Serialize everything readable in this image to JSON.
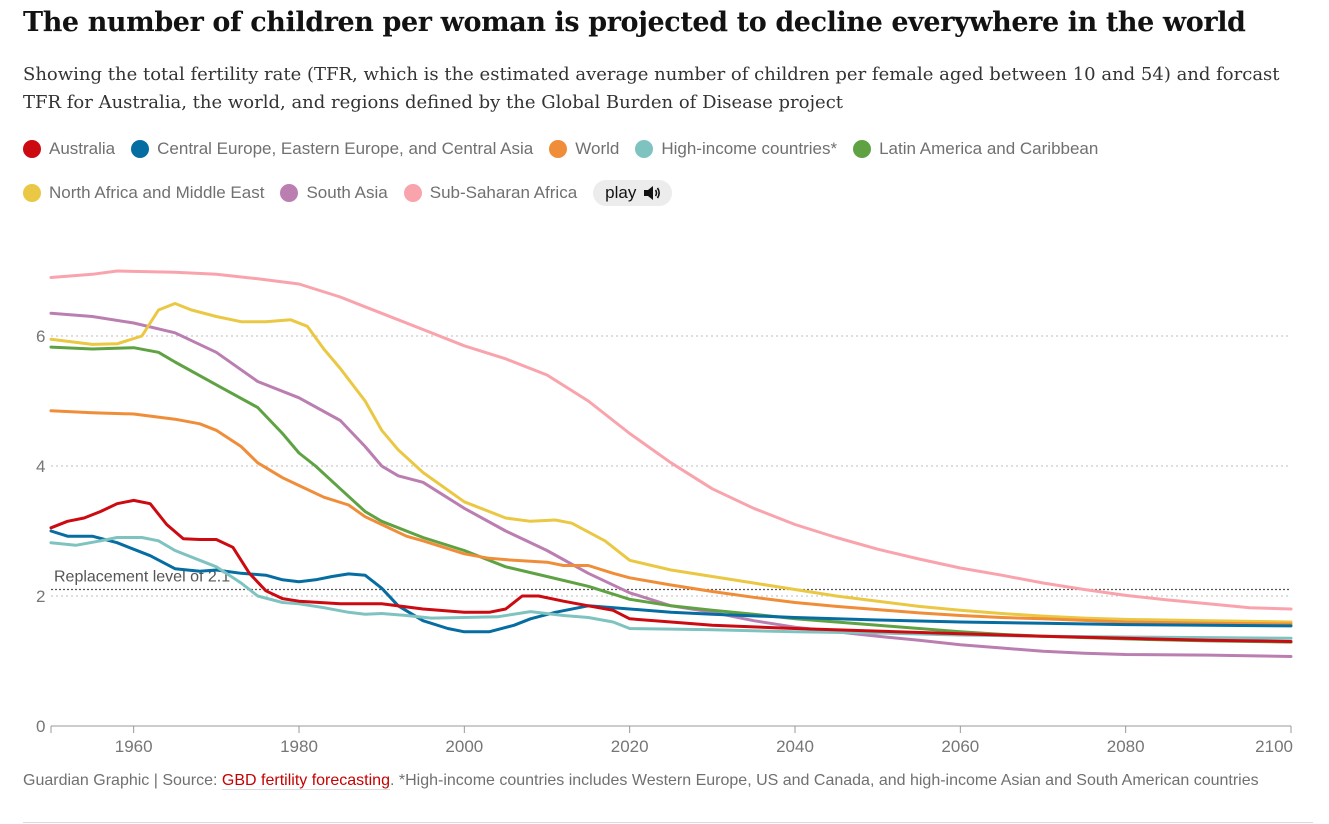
{
  "title": "The number of children per woman is projected to decline everywhere in the world",
  "subtitle": "Showing the total fertility rate (TFR, which is the estimated average number of children per female aged between 10 and 54) and forcast TFR for Australia, the world, and regions defined by the Global Burden of Disease project",
  "play_label": "play",
  "play_icon": "speaker-icon",
  "footer": {
    "prefix": "Guardian Graphic | Source: ",
    "link_text": "GBD fertility forecasting",
    "suffix": ". *High-income countries includes Western Europe, US and Canada, and high-income Asian and South American countries"
  },
  "chart_data": {
    "type": "line",
    "xlim": [
      1950,
      2100
    ],
    "ylim": [
      0,
      7
    ],
    "x_ticks": [
      1960,
      1980,
      2000,
      2020,
      2040,
      2060,
      2080,
      2100
    ],
    "y_ticks": [
      0,
      2,
      4,
      6
    ],
    "grid": "horizontal dotted",
    "legend_position": "top",
    "reference_line": {
      "value": 2.1,
      "label": "Replacement level of 2.1"
    },
    "series": [
      {
        "name": "Sub-Saharan Africa",
        "color": "#f9a3ad",
        "points": [
          [
            1950,
            6.9
          ],
          [
            1955,
            6.95
          ],
          [
            1958,
            7.0
          ],
          [
            1965,
            6.98
          ],
          [
            1970,
            6.95
          ],
          [
            1975,
            6.88
          ],
          [
            1980,
            6.8
          ],
          [
            1985,
            6.6
          ],
          [
            1988,
            6.45
          ],
          [
            1990,
            6.35
          ],
          [
            1995,
            6.1
          ],
          [
            2000,
            5.85
          ],
          [
            2005,
            5.65
          ],
          [
            2010,
            5.4
          ],
          [
            2015,
            5.0
          ],
          [
            2020,
            4.5
          ],
          [
            2025,
            4.05
          ],
          [
            2030,
            3.65
          ],
          [
            2035,
            3.35
          ],
          [
            2040,
            3.1
          ],
          [
            2045,
            2.9
          ],
          [
            2050,
            2.72
          ],
          [
            2055,
            2.57
          ],
          [
            2060,
            2.43
          ],
          [
            2065,
            2.32
          ],
          [
            2070,
            2.2
          ],
          [
            2075,
            2.1
          ],
          [
            2080,
            2.01
          ],
          [
            2085,
            1.94
          ],
          [
            2090,
            1.88
          ],
          [
            2095,
            1.82
          ],
          [
            2100,
            1.8
          ]
        ]
      },
      {
        "name": "South Asia",
        "color": "#bb7eb0",
        "points": [
          [
            1950,
            6.35
          ],
          [
            1955,
            6.3
          ],
          [
            1960,
            6.2
          ],
          [
            1965,
            6.05
          ],
          [
            1970,
            5.75
          ],
          [
            1975,
            5.3
          ],
          [
            1980,
            5.05
          ],
          [
            1985,
            4.7
          ],
          [
            1988,
            4.3
          ],
          [
            1990,
            4.0
          ],
          [
            1992,
            3.85
          ],
          [
            1995,
            3.75
          ],
          [
            2000,
            3.35
          ],
          [
            2005,
            3.0
          ],
          [
            2010,
            2.7
          ],
          [
            2015,
            2.35
          ],
          [
            2020,
            2.05
          ],
          [
            2025,
            1.85
          ],
          [
            2030,
            1.75
          ],
          [
            2035,
            1.62
          ],
          [
            2040,
            1.52
          ],
          [
            2045,
            1.45
          ],
          [
            2050,
            1.38
          ],
          [
            2055,
            1.32
          ],
          [
            2060,
            1.25
          ],
          [
            2065,
            1.2
          ],
          [
            2070,
            1.15
          ],
          [
            2075,
            1.12
          ],
          [
            2080,
            1.1
          ],
          [
            2090,
            1.09
          ],
          [
            2100,
            1.07
          ]
        ]
      },
      {
        "name": "North Africa and Middle East",
        "color": "#eac843",
        "points": [
          [
            1950,
            5.95
          ],
          [
            1955,
            5.87
          ],
          [
            1958,
            5.88
          ],
          [
            1961,
            6.0
          ],
          [
            1963,
            6.4
          ],
          [
            1965,
            6.5
          ],
          [
            1967,
            6.4
          ],
          [
            1970,
            6.3
          ],
          [
            1973,
            6.22
          ],
          [
            1976,
            6.22
          ],
          [
            1979,
            6.25
          ],
          [
            1981,
            6.15
          ],
          [
            1983,
            5.8
          ],
          [
            1985,
            5.5
          ],
          [
            1988,
            5.0
          ],
          [
            1990,
            4.55
          ],
          [
            1992,
            4.25
          ],
          [
            1995,
            3.9
          ],
          [
            2000,
            3.45
          ],
          [
            2005,
            3.2
          ],
          [
            2008,
            3.15
          ],
          [
            2011,
            3.17
          ],
          [
            2013,
            3.12
          ],
          [
            2017,
            2.85
          ],
          [
            2020,
            2.55
          ],
          [
            2025,
            2.4
          ],
          [
            2030,
            2.3
          ],
          [
            2035,
            2.2
          ],
          [
            2040,
            2.1
          ],
          [
            2045,
            2.0
          ],
          [
            2050,
            1.92
          ],
          [
            2055,
            1.84
          ],
          [
            2060,
            1.78
          ],
          [
            2065,
            1.73
          ],
          [
            2070,
            1.69
          ],
          [
            2075,
            1.66
          ],
          [
            2080,
            1.64
          ],
          [
            2090,
            1.62
          ],
          [
            2100,
            1.6
          ]
        ]
      },
      {
        "name": "Latin America and Caribbean",
        "color": "#5fa244",
        "points": [
          [
            1950,
            5.83
          ],
          [
            1955,
            5.8
          ],
          [
            1960,
            5.82
          ],
          [
            1963,
            5.75
          ],
          [
            1965,
            5.6
          ],
          [
            1970,
            5.25
          ],
          [
            1975,
            4.9
          ],
          [
            1978,
            4.5
          ],
          [
            1980,
            4.2
          ],
          [
            1982,
            4.0
          ],
          [
            1985,
            3.65
          ],
          [
            1988,
            3.3
          ],
          [
            1990,
            3.15
          ],
          [
            1995,
            2.9
          ],
          [
            2000,
            2.7
          ],
          [
            2005,
            2.45
          ],
          [
            2010,
            2.3
          ],
          [
            2015,
            2.15
          ],
          [
            2020,
            1.95
          ],
          [
            2025,
            1.85
          ],
          [
            2030,
            1.78
          ],
          [
            2035,
            1.72
          ],
          [
            2040,
            1.65
          ],
          [
            2045,
            1.6
          ],
          [
            2050,
            1.55
          ],
          [
            2055,
            1.5
          ],
          [
            2060,
            1.45
          ],
          [
            2065,
            1.41
          ],
          [
            2070,
            1.38
          ],
          [
            2080,
            1.34
          ],
          [
            2090,
            1.31
          ],
          [
            2100,
            1.29
          ]
        ]
      },
      {
        "name": "World",
        "color": "#f08d39",
        "points": [
          [
            1950,
            4.85
          ],
          [
            1955,
            4.82
          ],
          [
            1960,
            4.8
          ],
          [
            1965,
            4.72
          ],
          [
            1968,
            4.65
          ],
          [
            1970,
            4.55
          ],
          [
            1973,
            4.3
          ],
          [
            1975,
            4.05
          ],
          [
            1978,
            3.82
          ],
          [
            1980,
            3.7
          ],
          [
            1983,
            3.52
          ],
          [
            1986,
            3.4
          ],
          [
            1988,
            3.22
          ],
          [
            1990,
            3.1
          ],
          [
            1993,
            2.92
          ],
          [
            1995,
            2.85
          ],
          [
            2000,
            2.65
          ],
          [
            2003,
            2.58
          ],
          [
            2006,
            2.55
          ],
          [
            2010,
            2.52
          ],
          [
            2012,
            2.47
          ],
          [
            2015,
            2.47
          ],
          [
            2018,
            2.35
          ],
          [
            2020,
            2.28
          ],
          [
            2025,
            2.17
          ],
          [
            2030,
            2.07
          ],
          [
            2035,
            1.98
          ],
          [
            2040,
            1.9
          ],
          [
            2045,
            1.84
          ],
          [
            2050,
            1.79
          ],
          [
            2055,
            1.74
          ],
          [
            2060,
            1.7
          ],
          [
            2065,
            1.67
          ],
          [
            2070,
            1.65
          ],
          [
            2080,
            1.6
          ],
          [
            2090,
            1.58
          ],
          [
            2100,
            1.57
          ]
        ]
      },
      {
        "name": "Central Europe, Eastern Europe, and Central Asia",
        "color": "#056da1",
        "points": [
          [
            1950,
            3.0
          ],
          [
            1952,
            2.92
          ],
          [
            1955,
            2.92
          ],
          [
            1958,
            2.82
          ],
          [
            1962,
            2.62
          ],
          [
            1965,
            2.42
          ],
          [
            1968,
            2.38
          ],
          [
            1970,
            2.4
          ],
          [
            1973,
            2.35
          ],
          [
            1976,
            2.32
          ],
          [
            1978,
            2.25
          ],
          [
            1980,
            2.22
          ],
          [
            1982,
            2.25
          ],
          [
            1984,
            2.3
          ],
          [
            1986,
            2.34
          ],
          [
            1988,
            2.32
          ],
          [
            1990,
            2.12
          ],
          [
            1992,
            1.85
          ],
          [
            1995,
            1.62
          ],
          [
            1998,
            1.5
          ],
          [
            2000,
            1.45
          ],
          [
            2003,
            1.45
          ],
          [
            2006,
            1.55
          ],
          [
            2008,
            1.65
          ],
          [
            2011,
            1.75
          ],
          [
            2015,
            1.85
          ],
          [
            2020,
            1.8
          ],
          [
            2025,
            1.75
          ],
          [
            2030,
            1.72
          ],
          [
            2040,
            1.67
          ],
          [
            2050,
            1.63
          ],
          [
            2060,
            1.6
          ],
          [
            2070,
            1.58
          ],
          [
            2080,
            1.56
          ],
          [
            2090,
            1.55
          ],
          [
            2100,
            1.54
          ]
        ]
      },
      {
        "name": "High-income countries*",
        "color": "#7fc3c1",
        "points": [
          [
            1950,
            2.82
          ],
          [
            1953,
            2.78
          ],
          [
            1956,
            2.85
          ],
          [
            1958,
            2.9
          ],
          [
            1961,
            2.9
          ],
          [
            1963,
            2.85
          ],
          [
            1965,
            2.7
          ],
          [
            1968,
            2.55
          ],
          [
            1970,
            2.45
          ],
          [
            1973,
            2.2
          ],
          [
            1975,
            2.0
          ],
          [
            1978,
            1.9
          ],
          [
            1980,
            1.88
          ],
          [
            1983,
            1.82
          ],
          [
            1986,
            1.75
          ],
          [
            1988,
            1.72
          ],
          [
            1990,
            1.73
          ],
          [
            1993,
            1.7
          ],
          [
            1996,
            1.66
          ],
          [
            2000,
            1.67
          ],
          [
            2004,
            1.68
          ],
          [
            2008,
            1.76
          ],
          [
            2012,
            1.7
          ],
          [
            2015,
            1.67
          ],
          [
            2018,
            1.6
          ],
          [
            2020,
            1.5
          ],
          [
            2025,
            1.49
          ],
          [
            2030,
            1.48
          ],
          [
            2040,
            1.45
          ],
          [
            2050,
            1.43
          ],
          [
            2060,
            1.4
          ],
          [
            2070,
            1.38
          ],
          [
            2080,
            1.37
          ],
          [
            2090,
            1.36
          ],
          [
            2100,
            1.35
          ]
        ]
      },
      {
        "name": "Australia",
        "color": "#cc0a11",
        "points": [
          [
            1950,
            3.05
          ],
          [
            1952,
            3.15
          ],
          [
            1954,
            3.2
          ],
          [
            1956,
            3.3
          ],
          [
            1958,
            3.42
          ],
          [
            1960,
            3.47
          ],
          [
            1962,
            3.42
          ],
          [
            1964,
            3.1
          ],
          [
            1966,
            2.88
          ],
          [
            1968,
            2.87
          ],
          [
            1970,
            2.87
          ],
          [
            1972,
            2.75
          ],
          [
            1974,
            2.35
          ],
          [
            1976,
            2.08
          ],
          [
            1978,
            1.96
          ],
          [
            1980,
            1.92
          ],
          [
            1985,
            1.88
          ],
          [
            1990,
            1.88
          ],
          [
            1995,
            1.8
          ],
          [
            2000,
            1.75
          ],
          [
            2003,
            1.75
          ],
          [
            2005,
            1.8
          ],
          [
            2007,
            2.0
          ],
          [
            2009,
            2.0
          ],
          [
            2012,
            1.92
          ],
          [
            2015,
            1.85
          ],
          [
            2018,
            1.78
          ],
          [
            2020,
            1.65
          ],
          [
            2025,
            1.6
          ],
          [
            2030,
            1.55
          ],
          [
            2040,
            1.5
          ],
          [
            2050,
            1.46
          ],
          [
            2060,
            1.42
          ],
          [
            2070,
            1.38
          ],
          [
            2080,
            1.35
          ],
          [
            2090,
            1.32
          ],
          [
            2100,
            1.3
          ]
        ]
      }
    ]
  }
}
